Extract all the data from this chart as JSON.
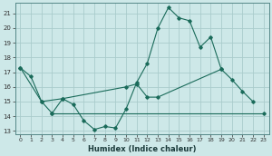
{
  "xlabel": "Humidex (Indice chaleur)",
  "background_color": "#cde8e8",
  "grid_color": "#aacccc",
  "line_color": "#1a6b5a",
  "xlim": [
    -0.5,
    23.5
  ],
  "ylim": [
    12.8,
    21.7
  ],
  "x_ticks": [
    0,
    1,
    2,
    3,
    4,
    5,
    6,
    7,
    8,
    9,
    10,
    11,
    12,
    13,
    14,
    15,
    16,
    17,
    18,
    19,
    20,
    21,
    22,
    23
  ],
  "y_ticks": [
    13,
    14,
    15,
    16,
    17,
    18,
    19,
    20,
    21
  ],
  "series1_x": [
    0,
    1,
    2,
    3,
    4,
    5,
    6,
    7,
    8,
    9,
    10,
    11,
    12,
    13,
    14,
    15,
    16,
    17,
    18,
    19,
    20,
    21,
    22
  ],
  "series1_y": [
    17.3,
    16.7,
    15.0,
    14.2,
    15.2,
    14.8,
    13.7,
    13.1,
    13.3,
    13.2,
    14.5,
    16.3,
    17.6,
    20.0,
    21.4,
    20.7,
    20.5,
    18.7,
    19.4,
    17.2,
    16.5,
    15.7,
    15.0
  ],
  "series2_x": [
    0,
    2,
    4,
    10,
    11,
    12,
    13,
    19
  ],
  "series2_y": [
    17.3,
    15.0,
    15.2,
    16.0,
    16.2,
    15.3,
    15.3,
    17.2
  ],
  "series3_x": [
    3,
    23
  ],
  "series3_y": [
    14.2,
    14.2
  ]
}
